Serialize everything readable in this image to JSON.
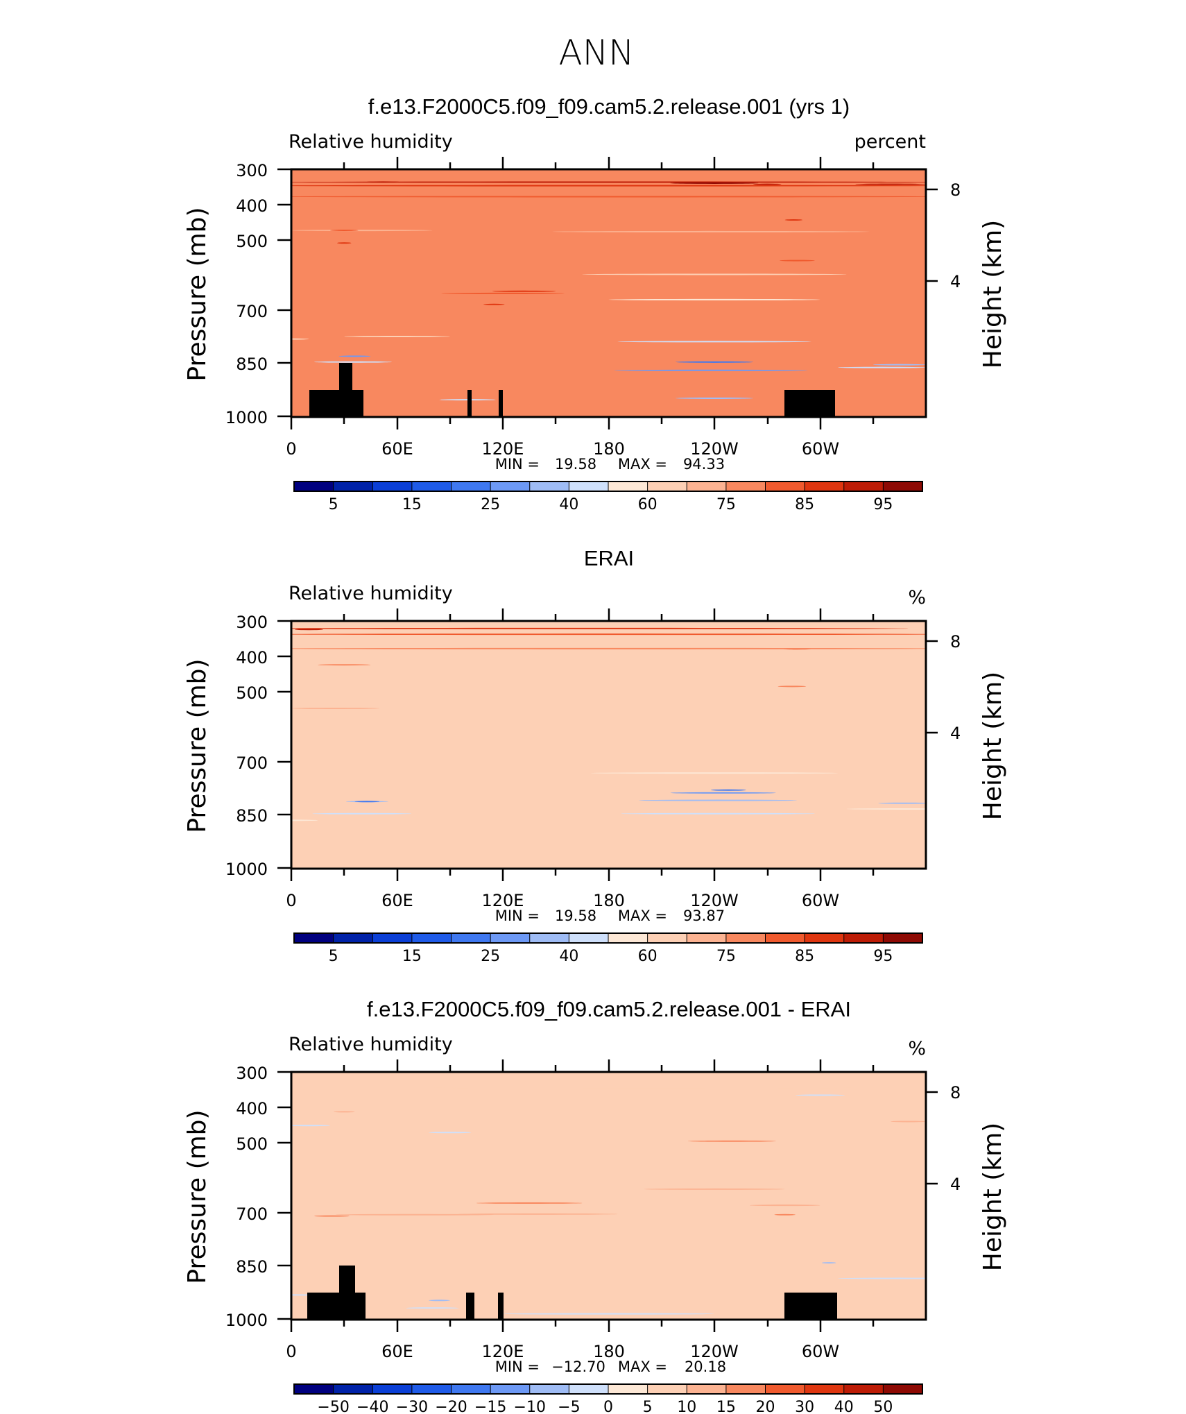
{
  "figure": {
    "season": "ANN"
  },
  "colors": {
    "land_mask": "#000000",
    "frame": "#000000"
  },
  "abs_palette": [
    "#00007f",
    "#0022a8",
    "#0b3fd6",
    "#1f5be8",
    "#3f78f0",
    "#6d99f5",
    "#9fbcf5",
    "#cfe0fb",
    "#fde8d6",
    "#fdd0b5",
    "#fcb392",
    "#f8885f",
    "#f05a2e",
    "#df3610",
    "#bd1c06",
    "#8e0a04"
  ],
  "abs_levels": [
    "5",
    "15",
    "25",
    "40",
    "60",
    "75",
    "85",
    "95"
  ],
  "diff_palette": [
    "#00007f",
    "#0022a8",
    "#0b3fd6",
    "#1f5be8",
    "#3f78f0",
    "#6d99f5",
    "#9fbcf5",
    "#cfe0fb",
    "#fde8d6",
    "#fdd0b5",
    "#fcb392",
    "#f8885f",
    "#f05a2e",
    "#df3610",
    "#bd1c06",
    "#8e0a04"
  ],
  "diff_levels": [
    "−50",
    "−40",
    "−30",
    "−20",
    "−15",
    "−10",
    "−5",
    "0",
    "5",
    "10",
    "15",
    "20",
    "30",
    "40",
    "50"
  ],
  "chart_data": [
    {
      "type": "heatmap",
      "title": "f.e13.F2000C5.f09_f09.cam5.2.release.001 (yrs 1)",
      "variable": "Relative humidity",
      "units": "percent",
      "ylabel": "Pressure (mb)",
      "ylabel_right": "Height (km)",
      "x_ticks": [
        "0",
        "60E",
        "120E",
        "180",
        "120W",
        "60W"
      ],
      "y_ticks": [
        "300",
        "400",
        "500",
        "700",
        "850",
        "1000"
      ],
      "y_ticks_right": [
        "8",
        "4"
      ],
      "stats": {
        "min_label": "MIN =",
        "min": "19.58",
        "max_label": "MAX =",
        "max": "94.33"
      },
      "xlim": [
        0,
        360
      ],
      "ylim": [
        1000,
        300
      ],
      "yscale": "log",
      "colorbar": "abs",
      "background_class": 11,
      "field": [
        {
          "c": 9,
          "x": 0,
          "p": 300,
          "rx": 10,
          "rp": 500
        },
        {
          "c": 7,
          "x": 35,
          "p": 400,
          "rx": 22,
          "rp": 80
        },
        {
          "c": 5,
          "x": 36,
          "p": 405,
          "rx": 9,
          "rp": 40
        },
        {
          "c": 7,
          "x": 100,
          "p": 330,
          "rx": 16,
          "rp": 50
        },
        {
          "c": 6,
          "x": 240,
          "p": 320,
          "rx": 22,
          "rp": 130
        },
        {
          "c": 7,
          "x": 240,
          "p": 480,
          "rx": 55,
          "rp": 300
        },
        {
          "c": 8,
          "x": 240,
          "p": 600,
          "rx": 60,
          "rp": 280
        },
        {
          "c": 9,
          "x": 240,
          "p": 650,
          "rx": 75,
          "rp": 250
        },
        {
          "c": 10,
          "x": 238,
          "p": 760,
          "rx": 90,
          "rp": 180
        },
        {
          "c": 5,
          "x": 238,
          "p": 395,
          "rx": 55,
          "rp": 120
        },
        {
          "c": 4,
          "x": 240,
          "p": 395,
          "rx": 22,
          "rp": 50
        },
        {
          "c": 7,
          "x": 335,
          "p": 400,
          "rx": 25,
          "rp": 120
        },
        {
          "c": 6,
          "x": 345,
          "p": 390,
          "rx": 15,
          "rp": 50
        },
        {
          "c": 9,
          "x": 60,
          "p": 520,
          "rx": 30,
          "rp": 300
        },
        {
          "c": 10,
          "x": 40,
          "p": 760,
          "rx": 40,
          "rp": 160
        },
        {
          "c": 12,
          "x": 120,
          "p": 560,
          "rx": 35,
          "rp": 120
        },
        {
          "c": 13,
          "x": 132,
          "p": 560,
          "rx": 18,
          "rp": 90
        },
        {
          "c": 13,
          "x": 115,
          "p": 520,
          "rx": 6,
          "rp": 40
        },
        {
          "c": 12,
          "x": 30,
          "p": 750,
          "rx": 8,
          "rp": 100
        },
        {
          "c": 13,
          "x": 30,
          "p": 700,
          "rx": 4,
          "rp": 40
        },
        {
          "c": 12,
          "x": 287,
          "p": 700,
          "rx": 10,
          "rp": 280
        },
        {
          "c": 13,
          "x": 285,
          "p": 800,
          "rx": 5,
          "rp": 170
        },
        {
          "c": 12,
          "x": 180,
          "p": 880,
          "rx": 200,
          "rp": 90
        },
        {
          "c": 13,
          "x": 180,
          "p": 925,
          "rx": 200,
          "rp": 55
        },
        {
          "c": 14,
          "x": 180,
          "p": 940,
          "rx": 190,
          "rp": 30
        },
        {
          "c": 14,
          "x": 270,
          "p": 930,
          "rx": 8,
          "rp": 25
        },
        {
          "c": 14,
          "x": 340,
          "p": 930,
          "rx": 20,
          "rp": 25
        },
        {
          "c": 14,
          "x": 52,
          "p": 940,
          "rx": 10,
          "rp": 15
        },
        {
          "c": 15,
          "x": 240,
          "p": 935,
          "rx": 25,
          "rp": 12
        }
      ]
    },
    {
      "type": "heatmap",
      "title": "ERAI",
      "variable": "Relative humidity",
      "units": "%",
      "ylabel": "Pressure (mb)",
      "ylabel_right": "Height (km)",
      "x_ticks": [
        "0",
        "60E",
        "120E",
        "180",
        "120W",
        "60W"
      ],
      "y_ticks": [
        "300",
        "400",
        "500",
        "700",
        "850",
        "1000"
      ],
      "y_ticks_right": [
        "8",
        "4"
      ],
      "stats": {
        "min_label": "MIN =",
        "min": "19.58",
        "max_label": "MAX =",
        "max": "93.87"
      },
      "xlim": [
        0,
        360
      ],
      "ylim": [
        1000,
        300
      ],
      "yscale": "log",
      "colorbar": "abs",
      "background_class": 9,
      "field": [
        {
          "c": 8,
          "x": 0,
          "p": 300,
          "rx": 15,
          "rp": 300
        },
        {
          "c": 7,
          "x": 40,
          "p": 440,
          "rx": 28,
          "rp": 200
        },
        {
          "c": 6,
          "x": 43,
          "p": 430,
          "rx": 12,
          "rp": 110
        },
        {
          "c": 4,
          "x": 43,
          "p": 420,
          "rx": 7,
          "rp": 60
        },
        {
          "c": 8,
          "x": 240,
          "p": 500,
          "rx": 70,
          "rp": 450
        },
        {
          "c": 7,
          "x": 242,
          "p": 440,
          "rx": 55,
          "rp": 200
        },
        {
          "c": 6,
          "x": 242,
          "p": 435,
          "rx": 45,
          "rp": 120
        },
        {
          "c": 5,
          "x": 245,
          "p": 440,
          "rx": 30,
          "rp": 75
        },
        {
          "c": 4,
          "x": 248,
          "p": 440,
          "rx": 10,
          "rp": 20
        },
        {
          "c": 8,
          "x": 355,
          "p": 420,
          "rx": 40,
          "rp": 250
        },
        {
          "c": 6,
          "x": 348,
          "p": 420,
          "rx": 15,
          "rp": 80
        },
        {
          "c": 10,
          "x": 25,
          "p": 700,
          "rx": 25,
          "rp": 250
        },
        {
          "c": 11,
          "x": 30,
          "p": 820,
          "rx": 15,
          "rp": 140
        },
        {
          "c": 11,
          "x": 284,
          "p": 760,
          "rx": 8,
          "rp": 220
        },
        {
          "c": 12,
          "x": 287,
          "p": 880,
          "rx": 8,
          "rp": 110
        },
        {
          "c": 11,
          "x": 180,
          "p": 880,
          "rx": 200,
          "rp": 100
        },
        {
          "c": 12,
          "x": 180,
          "p": 940,
          "rx": 200,
          "rp": 70
        },
        {
          "c": 13,
          "x": 160,
          "p": 965,
          "rx": 190,
          "rp": 45
        },
        {
          "c": 14,
          "x": 10,
          "p": 960,
          "rx": 8,
          "rp": 30
        },
        {
          "c": 9,
          "x": 38,
          "p": 930,
          "rx": 3,
          "rp": 80
        }
      ]
    },
    {
      "type": "heatmap",
      "title": "f.e13.F2000C5.f09_f09.cam5.2.release.001 - ERAI",
      "variable": "Relative humidity",
      "units": "%",
      "ylabel": "Pressure (mb)",
      "ylabel_right": "Height (km)",
      "x_ticks": [
        "0",
        "60E",
        "120E",
        "180",
        "120W",
        "60W"
      ],
      "y_ticks": [
        "300",
        "400",
        "500",
        "700",
        "850",
        "1000"
      ],
      "y_ticks_right": [
        "8",
        "4"
      ],
      "stats": {
        "min_label": "MIN =",
        "min": "−12.70",
        "max_label": "MAX =",
        "max": "20.18"
      },
      "xlim": [
        0,
        360
      ],
      "ylim": [
        1000,
        300
      ],
      "yscale": "log",
      "colorbar": "diff",
      "background_class": 9,
      "field": [
        {
          "c": 7,
          "x": 0,
          "p": 350,
          "rx": 25,
          "rp": 90
        },
        {
          "c": 7,
          "x": 80,
          "p": 320,
          "rx": 15,
          "rp": 40
        },
        {
          "c": 6,
          "x": 84,
          "p": 330,
          "rx": 6,
          "rp": 20
        },
        {
          "c": 7,
          "x": 180,
          "p": 310,
          "rx": 60,
          "rp": 30
        },
        {
          "c": 7,
          "x": 345,
          "p": 380,
          "rx": 35,
          "rp": 180
        },
        {
          "c": 6,
          "x": 305,
          "p": 400,
          "rx": 4,
          "rp": 60
        },
        {
          "c": 10,
          "x": 70,
          "p": 550,
          "rx": 45,
          "rp": 230
        },
        {
          "c": 10,
          "x": 140,
          "p": 560,
          "rx": 45,
          "rp": 250
        },
        {
          "c": 11,
          "x": 135,
          "p": 540,
          "rx": 30,
          "rp": 110
        },
        {
          "c": 10,
          "x": 240,
          "p": 600,
          "rx": 40,
          "rp": 200
        },
        {
          "c": 11,
          "x": 250,
          "p": 720,
          "rx": 25,
          "rp": 90
        },
        {
          "c": 10,
          "x": 280,
          "p": 560,
          "rx": 20,
          "rp": 200
        },
        {
          "c": 11,
          "x": 280,
          "p": 500,
          "rx": 6,
          "rp": 20
        },
        {
          "c": 11,
          "x": 23,
          "p": 500,
          "rx": 10,
          "rp": 60
        },
        {
          "c": 9,
          "x": 200,
          "p": 930,
          "rx": 120,
          "rp": 80
        },
        {
          "c": 7,
          "x": 10,
          "p": 780,
          "rx": 12,
          "rp": 120
        },
        {
          "c": 7,
          "x": 90,
          "p": 760,
          "rx": 12,
          "rp": 150
        },
        {
          "c": 7,
          "x": 300,
          "p": 900,
          "rx": 14,
          "rp": 110
        },
        {
          "c": 10,
          "x": 30,
          "p": 830,
          "rx": 6,
          "rp": 100
        },
        {
          "c": 10,
          "x": 350,
          "p": 800,
          "rx": 10,
          "rp": 150
        }
      ]
    }
  ]
}
